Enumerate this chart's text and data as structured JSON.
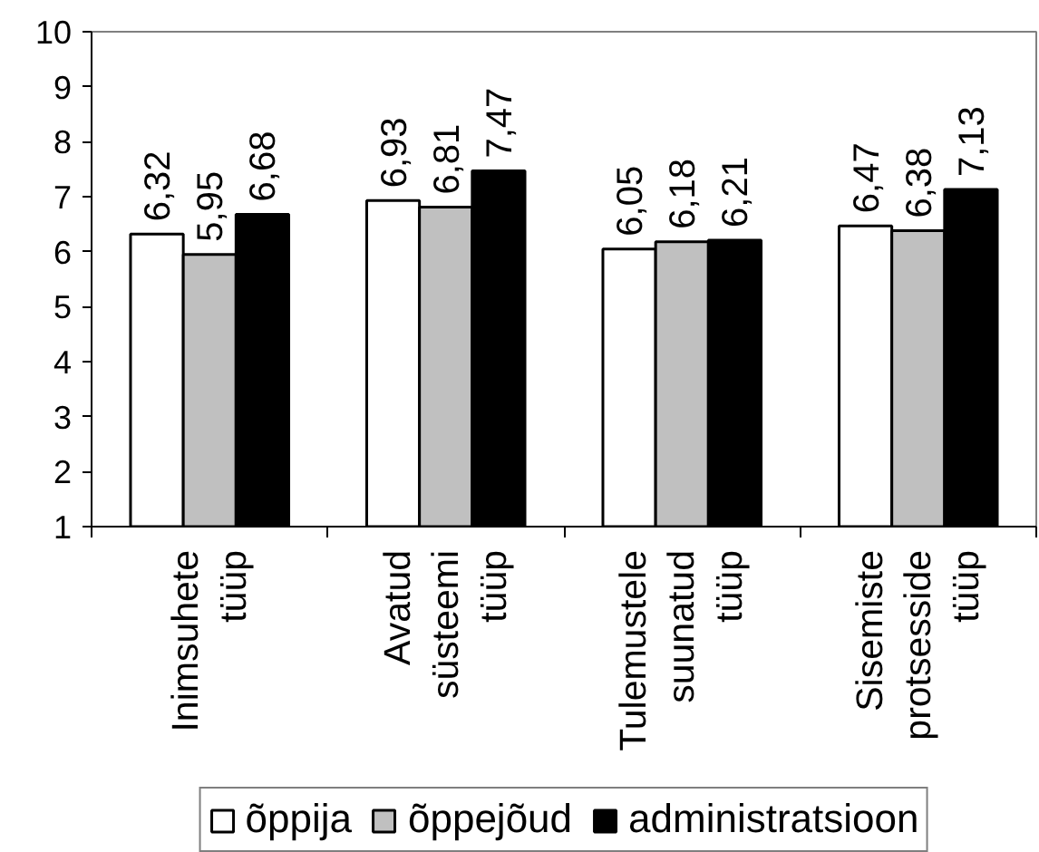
{
  "chart_data": {
    "type": "bar",
    "categories": [
      "Inimsuhete tüüp",
      "Avatud süsteemi tüüp",
      "Tulemustele suunatud tüüp",
      "Sisemiste protsesside tüüp"
    ],
    "series": [
      {
        "name": "õppija",
        "color": "#ffffff",
        "values": [
          6.32,
          6.93,
          6.05,
          6.47
        ],
        "value_labels": [
          "6,32",
          "6,93",
          "6,05",
          "6,47"
        ]
      },
      {
        "name": "õppejõud",
        "color": "#c0c0c0",
        "values": [
          5.95,
          6.81,
          6.18,
          6.38
        ],
        "value_labels": [
          "5,95",
          "6,81",
          "6,18",
          "6,38"
        ]
      },
      {
        "name": "administratsioon",
        "color": "#000000",
        "values": [
          6.68,
          7.47,
          6.21,
          7.13
        ],
        "value_labels": [
          "6,68",
          "7,47",
          "6,21",
          "7,13"
        ]
      }
    ],
    "ylim": [
      1,
      10
    ],
    "yticks": [
      1,
      2,
      3,
      4,
      5,
      6,
      7,
      8,
      9,
      10
    ],
    "grid": false,
    "legend": "bottom"
  }
}
